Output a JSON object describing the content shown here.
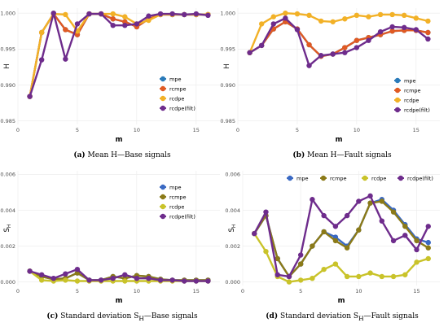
{
  "chart_data": [
    {
      "id": "a",
      "type": "line",
      "xlabel": "m",
      "ylabel": "H",
      "xlim": [
        0,
        17
      ],
      "ylim": [
        0.9845,
        1.0007
      ],
      "xticks": [
        0,
        5,
        10,
        15
      ],
      "yticks": [
        0.985,
        0.99,
        0.995,
        1.0
      ],
      "ytick_labels": [
        "0.985",
        "0.990",
        "0.995",
        "1.000"
      ],
      "legend_position": "right-middle",
      "x": [
        1,
        2,
        3,
        4,
        5,
        6,
        7,
        8,
        9,
        10,
        11,
        12,
        13,
        14,
        15,
        16
      ],
      "series": [
        {
          "name": "mpe",
          "color": "#2a7ab9",
          "values": [
            0.9884,
            0.9973,
            0.9999,
            0.9977,
            0.997,
            0.9999,
            0.9999,
            0.9992,
            0.9988,
            0.9981,
            0.9992,
            0.9998,
            0.9998,
            0.9998,
            0.9998,
            0.9998
          ]
        },
        {
          "name": "rcmpe",
          "color": "#e05a23",
          "values": [
            0.9884,
            0.9973,
            0.9999,
            0.9977,
            0.997,
            0.9999,
            0.9999,
            0.9992,
            0.9988,
            0.9981,
            0.9992,
            0.9998,
            0.9998,
            0.9998,
            0.9998,
            0.9998
          ]
        },
        {
          "name": "rcdpe",
          "color": "#f2b127",
          "values": [
            0.9884,
            0.9973,
            0.9999,
            0.9998,
            0.9975,
            0.9999,
            0.9999,
            0.9999,
            0.9995,
            0.9985,
            0.999,
            0.9998,
            0.9998,
            0.9998,
            0.9998,
            0.9998
          ]
        },
        {
          "name": "rcdpe(filt)",
          "color": "#6e2c8c",
          "values": [
            0.9884,
            0.9935,
            1.0,
            0.9936,
            0.9985,
            0.9999,
            0.9999,
            0.9983,
            0.9983,
            0.9985,
            0.9996,
            0.9999,
            0.9999,
            0.9998,
            0.9999,
            0.9997
          ]
        }
      ]
    },
    {
      "id": "b",
      "type": "line",
      "xlabel": "m",
      "ylabel": "H",
      "xlim": [
        0,
        17
      ],
      "ylim": [
        0.9845,
        1.0007
      ],
      "xticks": [
        0,
        5,
        10,
        15
      ],
      "yticks": [
        0.985,
        0.99,
        0.995,
        1.0
      ],
      "ytick_labels": [
        "0.985",
        "0.990",
        "0.995",
        "1.000"
      ],
      "legend_position": "right-middle",
      "x": [
        1,
        2,
        3,
        4,
        5,
        6,
        7,
        8,
        9,
        10,
        11,
        12,
        13,
        14,
        15,
        16
      ],
      "series": [
        {
          "name": "mpe",
          "color": "#2a7ab9",
          "values": [
            0.9945,
            0.9955,
            0.9978,
            0.9988,
            0.9978,
            0.9956,
            0.994,
            0.9943,
            0.9952,
            0.9962,
            0.9966,
            0.997,
            0.9975,
            0.9976,
            0.9976,
            0.9973
          ]
        },
        {
          "name": "rcmpe",
          "color": "#e05a23",
          "values": [
            0.9945,
            0.9955,
            0.9978,
            0.9988,
            0.9978,
            0.9956,
            0.994,
            0.9943,
            0.9952,
            0.9962,
            0.9966,
            0.997,
            0.9975,
            0.9976,
            0.9976,
            0.9973
          ]
        },
        {
          "name": "rcdpe",
          "color": "#f2b127",
          "values": [
            0.9945,
            0.9985,
            0.9995,
            1.0,
            0.9999,
            0.9997,
            0.9989,
            0.9988,
            0.9992,
            0.9997,
            0.9995,
            0.9998,
            0.9998,
            0.9997,
            0.9993,
            0.9989
          ]
        },
        {
          "name": "rcdpe(filt)",
          "color": "#6e2c8c",
          "values": [
            0.9945,
            0.9955,
            0.9985,
            0.9993,
            0.9977,
            0.9927,
            0.9941,
            0.9943,
            0.9945,
            0.9952,
            0.9962,
            0.9974,
            0.9981,
            0.998,
            0.9977,
            0.9964
          ]
        }
      ]
    },
    {
      "id": "c",
      "type": "line",
      "xlabel": "m",
      "ylabel": "S",
      "ylabel_sub": "H",
      "xlim": [
        0,
        17
      ],
      "ylim": [
        -0.0002,
        0.0062
      ],
      "xticks": [
        0,
        5,
        10,
        15
      ],
      "yticks": [
        0.0,
        0.002,
        0.004,
        0.006
      ],
      "ytick_labels": [
        "0.000",
        "0.002",
        "0.004",
        "0.006"
      ],
      "legend_position": "right-top",
      "x": [
        1,
        2,
        3,
        4,
        5,
        6,
        7,
        8,
        9,
        10,
        11,
        12,
        13,
        14,
        15,
        16
      ],
      "series": [
        {
          "name": "mpe",
          "color": "#3a69c3",
          "values": [
            0.0006,
            0.0003,
            0.00015,
            0.0002,
            0.0005,
            0.0001,
            0.0001,
            0.0003,
            0.0002,
            0.00035,
            0.0003,
            0.00015,
            0.0001,
            0.0001,
            0.0001,
            0.0001
          ]
        },
        {
          "name": "rcmpe",
          "color": "#8b7a18",
          "values": [
            0.0006,
            0.0003,
            0.00015,
            0.0002,
            0.0005,
            0.0001,
            0.0001,
            0.0003,
            0.0002,
            0.00035,
            0.0003,
            0.00015,
            0.0001,
            0.0001,
            0.0001,
            0.0001
          ]
        },
        {
          "name": "rcdpe",
          "color": "#c9c32a",
          "values": [
            0.0006,
            0.0001,
            5e-05,
            0.0001,
            5e-05,
            5e-05,
            5e-05,
            5e-05,
            5e-05,
            5e-05,
            5e-05,
            5e-05,
            5e-05,
            5e-05,
            5e-05,
            5e-05
          ]
        },
        {
          "name": "rcdpe(filt)",
          "color": "#6e2c8c",
          "values": [
            0.0006,
            0.0004,
            0.0002,
            0.00045,
            0.0007,
            0.0001,
            0.0001,
            0.0002,
            0.0004,
            0.0002,
            0.0002,
            0.0001,
            0.0001,
            5e-05,
            5e-05,
            5e-05
          ]
        }
      ]
    },
    {
      "id": "d",
      "type": "line",
      "xlabel": "m",
      "ylabel": "S",
      "ylabel_sub": "H",
      "xlim": [
        0,
        17
      ],
      "ylim": [
        -0.0002,
        0.0062
      ],
      "xticks": [
        0,
        5,
        10,
        15
      ],
      "yticks": [
        0.0,
        0.002,
        0.004,
        0.006
      ],
      "ytick_labels": [
        "0.000",
        "0.002",
        "0.004",
        "0.006"
      ],
      "legend_position": "top",
      "x": [
        1,
        2,
        3,
        4,
        5,
        6,
        7,
        8,
        9,
        10,
        11,
        12,
        13,
        14,
        15,
        16
      ],
      "series": [
        {
          "name": "mpe",
          "color": "#3a69c3",
          "values": [
            0.0027,
            0.0037,
            0.0013,
            0.0003,
            0.001,
            0.002,
            0.0028,
            0.0025,
            0.002,
            0.0029,
            0.0044,
            0.0046,
            0.004,
            0.0032,
            0.0024,
            0.0022
          ]
        },
        {
          "name": "rcmpe",
          "color": "#8b7a18",
          "values": [
            0.0027,
            0.0037,
            0.0013,
            0.0003,
            0.001,
            0.002,
            0.0028,
            0.0023,
            0.0019,
            0.0029,
            0.0044,
            0.0045,
            0.0039,
            0.0031,
            0.0023,
            0.0019
          ]
        },
        {
          "name": "rcdpe",
          "color": "#c9c32a",
          "values": [
            0.0027,
            0.0017,
            0.0003,
            0.0,
            0.0001,
            0.0002,
            0.0007,
            0.001,
            0.0003,
            0.0003,
            0.0005,
            0.0003,
            0.0003,
            0.0004,
            0.0011,
            0.0013
          ]
        },
        {
          "name": "rcdpe(filt)",
          "color": "#6e2c8c",
          "values": [
            0.0027,
            0.0039,
            0.0004,
            0.0003,
            0.0015,
            0.0046,
            0.0037,
            0.0031,
            0.0037,
            0.0045,
            0.0048,
            0.0034,
            0.0023,
            0.0026,
            0.0018,
            0.0031
          ]
        }
      ]
    }
  ],
  "captions": {
    "a": {
      "label": "(a)",
      "text": " Mean H—Base signals"
    },
    "b": {
      "label": "(b)",
      "text": " Mean H—Fault signals"
    },
    "c": {
      "label": "(c)",
      "text": " Standard deviation S",
      "sub": "H",
      "tail": "—Base signals"
    },
    "d": {
      "label": "(d)",
      "text": " Standard deviation S",
      "sub": "H",
      "tail": "—Fault signals"
    }
  }
}
